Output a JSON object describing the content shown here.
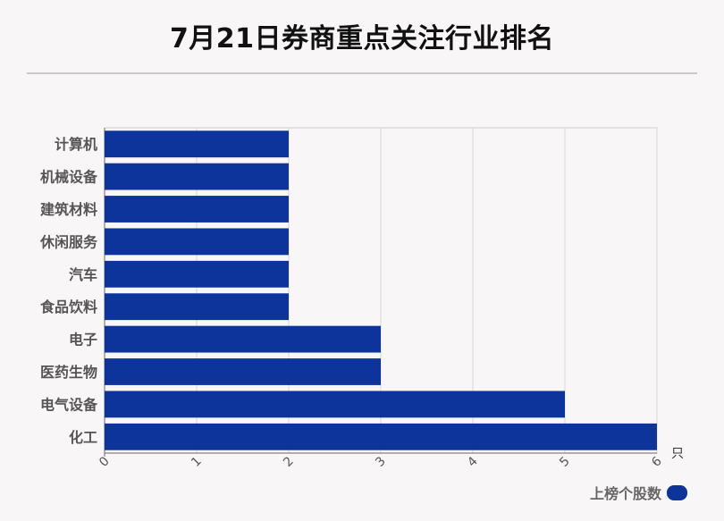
{
  "title": "7月21日券商重点关注行业排名",
  "chart_data": {
    "type": "bar",
    "orientation": "horizontal",
    "categories": [
      "计算机",
      "机械设备",
      "建筑材料",
      "休闲服务",
      "汽车",
      "食品饮料",
      "电子",
      "医药生物",
      "电气设备",
      "化工"
    ],
    "series": [
      {
        "name": "上榜个股数",
        "values": [
          2,
          2,
          2,
          2,
          2,
          2,
          3,
          3,
          5,
          6
        ]
      }
    ],
    "xlim": [
      0,
      6
    ],
    "xticks": [
      "0",
      "1",
      "2",
      "3",
      "4",
      "5",
      "6"
    ],
    "unit": "只",
    "grid": true,
    "legend_position": "bottom-right",
    "bar_color": "#0d349b"
  }
}
